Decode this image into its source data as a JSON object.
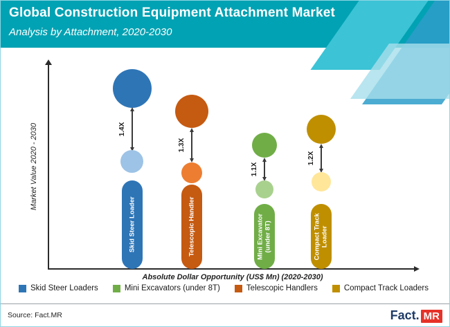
{
  "header": {
    "title": "Global Construction Equipment Attachment Market",
    "subtitle": "Analysis by Attachment, 2020-2030"
  },
  "colors": {
    "header_teal": "#00a2b3",
    "blue": "#2e75b6",
    "light_blue": "#9dc3e6",
    "orange_dark": "#c55a11",
    "orange": "#ed7d31",
    "green": "#70ad47",
    "light_green": "#a9d18e",
    "gold": "#bf8f00",
    "light_gold": "#ffe699",
    "logo_navy": "#1e3a66",
    "logo_red": "#e63229"
  },
  "chart_data": {
    "type": "bar",
    "title": "Global Construction Equipment Attachment Market - Analysis by Attachment, 2020-2030",
    "xlabel": "Absolute Dollar Opportunity (US$ Mn) (2020-2030)",
    "ylabel": "Market Value 2020 - 2030",
    "legend_position": "bottom",
    "categories": [
      "Skid Steer Loader",
      "Telescopic Handler",
      "Mini Excavator (under 8T)",
      "Compact Track Loader"
    ],
    "multipliers": [
      "1.4X",
      "1.3X",
      "1.1X",
      "1.2X"
    ],
    "groups": [
      {
        "label": "Skid Steer Loader",
        "multiplier": "1.4X",
        "color": "#2e75b6",
        "light_color": "#9dc3e6"
      },
      {
        "label": "Telescopic Handler",
        "multiplier": "1.3X",
        "color": "#c55a11",
        "light_color": "#ed7d31"
      },
      {
        "label": "Mini Excavator (under 8T)",
        "multiplier": "1.1X",
        "color": "#70ad47",
        "light_color": "#a9d18e"
      },
      {
        "label": "Compact Track Loader",
        "multiplier": "1.2X",
        "color": "#bf8f00",
        "light_color": "#ffe699"
      }
    ]
  },
  "legend": [
    {
      "label": "Skid Steer Loaders",
      "color": "#2e75b6"
    },
    {
      "label": "Mini Excavators (under 8T)",
      "color": "#70ad47"
    },
    {
      "label": "Telescopic Handlers",
      "color": "#c55a11"
    },
    {
      "label": "Compact Track Loaders",
      "color": "#bf8f00"
    }
  ],
  "footer": {
    "source": "Source: Fact.MR",
    "logo": {
      "fact": "Fact",
      "dot": ".",
      "mr": "MR"
    }
  }
}
